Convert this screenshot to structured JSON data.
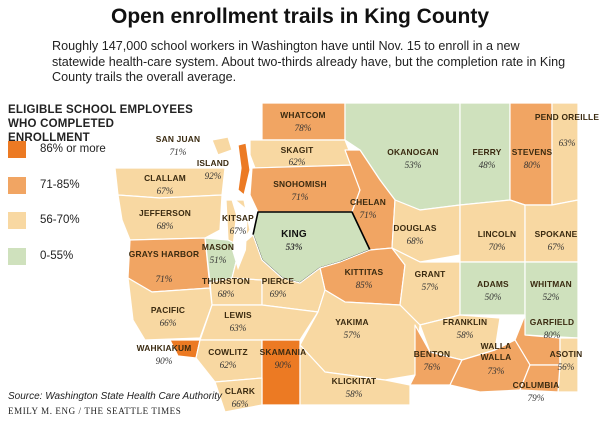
{
  "title": "Open enrollment trails in King County",
  "subtitle": "Roughly 147,000 school workers in Washington have until Nov. 15 to enroll in a new statewide health-care system. About two-thirds already have, but the completion rate in King County trails the overall average.",
  "legend": {
    "title_line1": "ELIGIBLE SCHOOL EMPLOYEES",
    "title_line2": "WHO COMPLETED ENROLLMENT",
    "items": [
      {
        "label": "86% or more",
        "color": "#ec7a23"
      },
      {
        "label": "71-85%",
        "color": "#f1a563"
      },
      {
        "label": "56-70%",
        "color": "#f8d8a2"
      },
      {
        "label": "0-55%",
        "color": "#cfe1bd"
      }
    ]
  },
  "counties": [
    {
      "name": "WHATCOM",
      "value": "78%"
    },
    {
      "name": "OKANOGAN",
      "value": "53%"
    },
    {
      "name": "FERRY",
      "value": "48%"
    },
    {
      "name": "STEVENS",
      "value": "80%"
    },
    {
      "name": "PEND OREILLE",
      "value": "63%"
    },
    {
      "name": "SAN JUAN",
      "value": "71%"
    },
    {
      "name": "ISLAND",
      "value": "92%"
    },
    {
      "name": "SKAGIT",
      "value": "62%"
    },
    {
      "name": "CLALLAM",
      "value": "67%"
    },
    {
      "name": "SNOHOMISH",
      "value": "71%"
    },
    {
      "name": "CHELAN",
      "value": "71%"
    },
    {
      "name": "JEFFERSON",
      "value": "68%"
    },
    {
      "name": "KITSAP",
      "value": "67%"
    },
    {
      "name": "KING",
      "value": "53%"
    },
    {
      "name": "DOUGLAS",
      "value": "68%"
    },
    {
      "name": "LINCOLN",
      "value": "70%"
    },
    {
      "name": "SPOKANE",
      "value": "67%"
    },
    {
      "name": "GRAYS HARBOR",
      "value": "71%"
    },
    {
      "name": "MASON",
      "value": "51%"
    },
    {
      "name": "KITTITAS",
      "value": "85%"
    },
    {
      "name": "GRANT",
      "value": "57%"
    },
    {
      "name": "ADAMS",
      "value": "50%"
    },
    {
      "name": "WHITMAN",
      "value": "52%"
    },
    {
      "name": "THURSTON",
      "value": "68%"
    },
    {
      "name": "PIERCE",
      "value": "69%"
    },
    {
      "name": "PACIFIC",
      "value": "66%"
    },
    {
      "name": "LEWIS",
      "value": "63%"
    },
    {
      "name": "YAKIMA",
      "value": "57%"
    },
    {
      "name": "FRANKLIN",
      "value": "58%"
    },
    {
      "name": "GARFIELD",
      "value": "80%"
    },
    {
      "name": "WAHKIAKUM",
      "value": "90%"
    },
    {
      "name": "COWLITZ",
      "value": "62%"
    },
    {
      "name": "SKAMANIA",
      "value": "90%"
    },
    {
      "name": "BENTON",
      "value": "76%"
    },
    {
      "name": "WALLA WALLA",
      "value": "73%"
    },
    {
      "name": "ASOTIN",
      "value": "56%"
    },
    {
      "name": "CLARK",
      "value": "66%"
    },
    {
      "name": "KLICKITAT",
      "value": "58%"
    },
    {
      "name": "COLUMBIA",
      "value": "79%"
    }
  ],
  "source": "Source: Washington State Health Care Authority",
  "credit": "EMILY M. ENG / THE SEATTLE TIMES"
}
